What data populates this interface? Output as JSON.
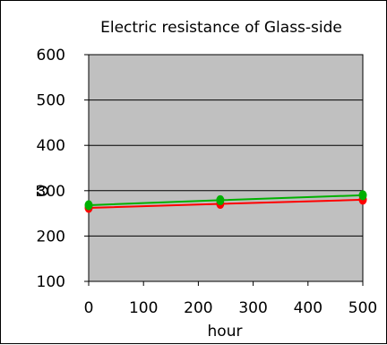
{
  "chart_data": {
    "type": "line",
    "title": "Electric resistance of Glass-side",
    "xlabel": "hour",
    "ylabel": "Ω",
    "xlim": [
      0,
      500
    ],
    "ylim": [
      100,
      600
    ],
    "xticks": [
      0,
      100,
      200,
      300,
      400,
      500
    ],
    "yticks": [
      100,
      200,
      300,
      400,
      500,
      600
    ],
    "grid": "horizontal",
    "plot_background": "#c0c0c0",
    "series": [
      {
        "color": "#ff0000",
        "x": [
          0,
          240,
          500
        ],
        "y": [
          262,
          271,
          280
        ]
      },
      {
        "color": "#00b000",
        "x": [
          0,
          240,
          500
        ],
        "y": [
          268,
          279,
          290
        ]
      }
    ]
  }
}
